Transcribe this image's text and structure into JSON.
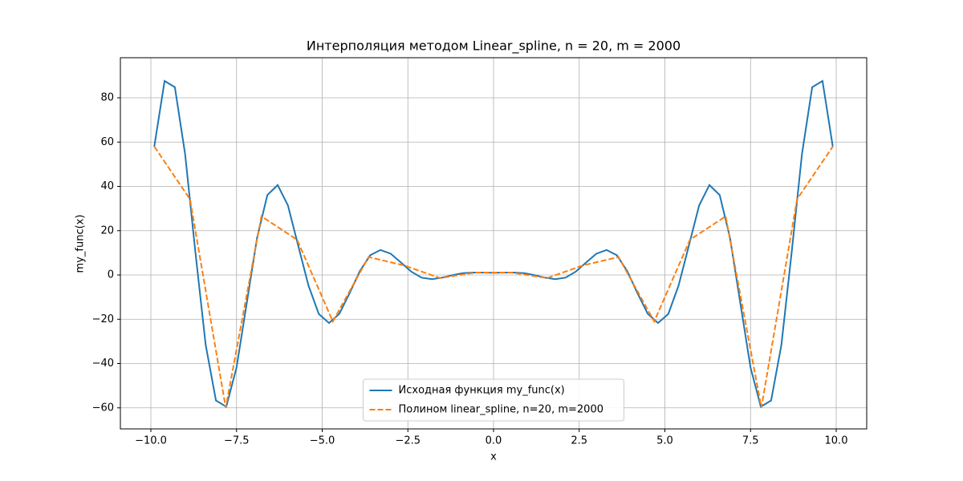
{
  "chart_data": {
    "type": "line",
    "title": "Интерполяция методом Linear_spline, n = 20, m = 2000",
    "x_label": "x",
    "y_label": "my_func(x)",
    "xlim": [
      -10.89,
      10.89
    ],
    "xticks": [
      {
        "value": -10,
        "label": "−10.0"
      },
      {
        "value": -7.5,
        "label": "−7.5"
      },
      {
        "value": -5,
        "label": "−5.0"
      },
      {
        "value": -2.5,
        "label": "−2.5"
      },
      {
        "value": 0,
        "label": "0.0"
      },
      2.5,
      {
        "value": 5,
        "label": "5.0"
      },
      7.5,
      {
        "value": 10,
        "label": "10.0"
      }
    ],
    "ylim": [
      -69.5,
      98.1
    ],
    "yticks": [
      {
        "value": -60,
        "label": "−60"
      },
      {
        "value": -40,
        "label": "−40"
      },
      {
        "value": -20,
        "label": "−20"
      },
      0,
      20,
      40,
      60,
      80
    ],
    "grid": true,
    "legend": "lower center",
    "series": [
      {
        "name": "Исходная функция my_func(x)",
        "color": "#1f77b4",
        "dash": false,
        "x": [
          -9.9,
          -9.6,
          -9.3,
          -9.0,
          -8.7,
          -8.4,
          -8.1,
          -7.8,
          -7.5,
          -7.2,
          -6.9,
          -6.6,
          -6.3,
          -6.0,
          -5.7,
          -5.4,
          -5.1,
          -4.8,
          -4.5,
          -4.2,
          -3.9,
          -3.6,
          -3.3,
          -3.0,
          -2.7,
          -2.4,
          -2.1,
          -1.8,
          -1.5,
          -1.2,
          -0.9,
          -0.6,
          -0.3,
          0,
          0.3,
          0.6,
          0.9,
          1.2,
          1.5,
          1.8,
          2.1,
          2.4,
          2.7,
          3.0,
          3.3,
          3.6,
          3.9,
          4.2,
          4.5,
          4.8,
          5.1,
          5.4,
          5.7,
          6.0,
          6.3,
          6.6,
          6.9,
          7.2,
          7.5,
          7.8,
          8.1,
          8.4,
          8.7,
          9.0,
          9.3,
          9.6,
          9.9
        ],
        "values": [
          58.0,
          87.6,
          84.8,
          54.5,
          10.2,
          -31.6,
          -56.7,
          -59.5,
          -41.8,
          -12.5,
          16.8,
          36.1,
          40.6,
          31.4,
          13.2,
          -4.8,
          -17.6,
          -21.7,
          -17.5,
          -8.2,
          1.8,
          8.9,
          11.3,
          9.6,
          5.6,
          1.5,
          -1.2,
          -1.9,
          -1.2,
          -0.1,
          0.8,
          1.1,
          1.1,
          1,
          1.1,
          1.1,
          0.8,
          -0.1,
          -1.2,
          -1.9,
          -1.2,
          1.5,
          5.6,
          9.6,
          11.3,
          8.9,
          1.8,
          -8.2,
          -17.5,
          -21.7,
          -17.6,
          -4.8,
          13.2,
          31.4,
          40.6,
          36.1,
          16.8,
          -12.5,
          -41.8,
          -59.5,
          -56.7,
          -31.6,
          10.2,
          54.5,
          84.8,
          87.6,
          58.0
        ]
      },
      {
        "name": "Полином linear_spline, n=20, m=2000",
        "color": "#ff7f0e",
        "dash": true,
        "x": [
          -9.9,
          -8.858,
          -7.816,
          -6.774,
          -5.732,
          -4.689,
          -3.647,
          -2.605,
          -1.563,
          -0.521,
          0.521,
          1.563,
          2.605,
          3.647,
          4.689,
          5.732,
          6.774,
          7.816,
          8.858,
          9.9
        ],
        "values": [
          58.0,
          34.2,
          -59.9,
          26.5,
          15.9,
          -21.0,
          8.1,
          4.3,
          -1.4,
          1.1,
          1.1,
          -1.4,
          4.3,
          8.1,
          -21.0,
          15.9,
          26.5,
          -59.9,
          34.2,
          58.0
        ]
      }
    ]
  }
}
